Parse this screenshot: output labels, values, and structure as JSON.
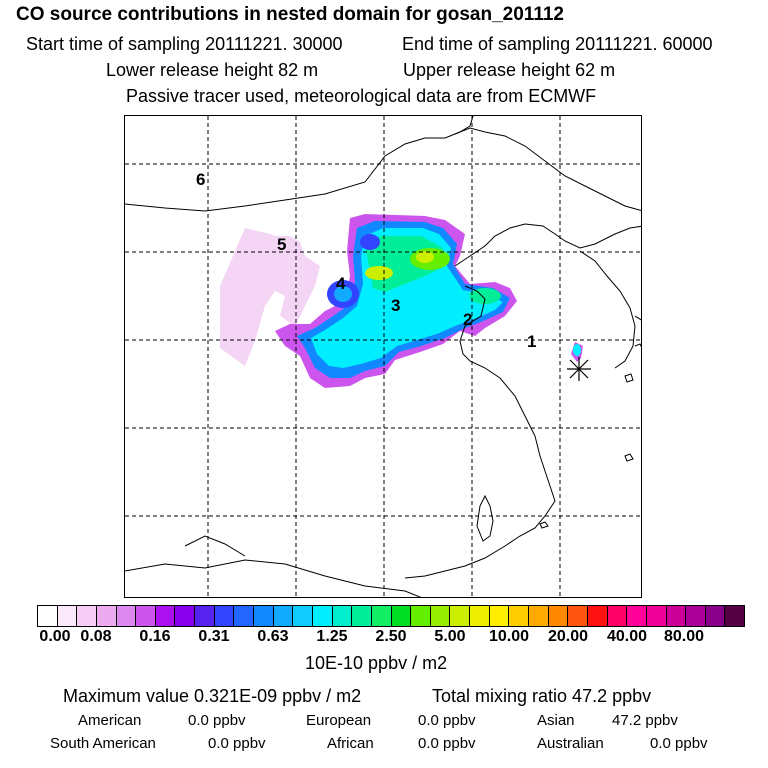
{
  "header": {
    "title": "CO  source contributions in nested domain for gosan_201112",
    "start_label": "Start time of sampling 20111221. 30000",
    "end_label": "End time of sampling 20111221. 60000",
    "lower_label": "Lower release height   82 m",
    "upper_label": "Upper release height   62 m",
    "tracer_line": "Passive tracer used, meteorological data are from ECMWF"
  },
  "map": {
    "region_labels": [
      "6",
      "5",
      "4",
      "3",
      "2",
      "1"
    ],
    "receptor_icon": "asterisk-receptor-marker"
  },
  "colorbar": {
    "colors": [
      "#ffffff",
      "#fbe8fb",
      "#f5cdf5",
      "#eeaaee",
      "#dd88ee",
      "#cc55ee",
      "#aa11ee",
      "#8800ee",
      "#5522ee",
      "#3344ff",
      "#2266ff",
      "#1188ff",
      "#11aaff",
      "#11ccff",
      "#00eeff",
      "#00eecc",
      "#00ee99",
      "#11ee66",
      "#00dd22",
      "#66ee00",
      "#99ee00",
      "#ccee00",
      "#eeee00",
      "#ffee00",
      "#ffcc00",
      "#ffaa00",
      "#ff8800",
      "#ff5511",
      "#ff1111",
      "#ff0066",
      "#ff0099",
      "#ee0099",
      "#cc0099",
      "#aa0099",
      "#880088",
      "#550044"
    ],
    "ticks": [
      "0.00",
      "0.08",
      "0.16",
      "0.31",
      "0.63",
      "1.25",
      "2.50",
      "5.00",
      "10.00",
      "20.00",
      "40.00",
      "80.00"
    ],
    "unit": "10E-10 ppbv / m2"
  },
  "stats": {
    "max_value": "Maximum value  0.321E-09 ppbv / m2",
    "total_mixing": "Total mixing ratio       47.2 ppbv",
    "american_label": "American",
    "american_value": "0.0 ppbv",
    "european_label": "European",
    "european_value": "0.0 ppbv",
    "asian_label": "Asian",
    "asian_value": "47.2 ppbv",
    "south_american_label": "South American",
    "south_american_value": "0.0 ppbv",
    "african_label": "African",
    "african_value": "0.0 ppbv",
    "australian_label": "Australian",
    "australian_value": "0.0 ppbv"
  }
}
